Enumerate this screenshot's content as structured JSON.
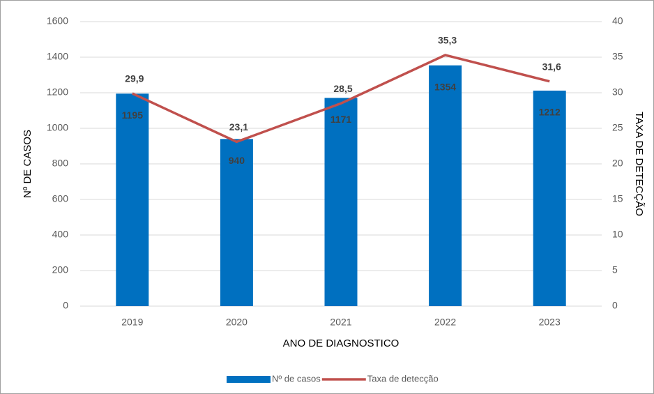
{
  "chart_data": {
    "type": "bar",
    "x_label": "ANO DE DIAGNOSTICO",
    "y_label": "Nº DE CASOS",
    "y2_label": "TAXA DE DETECÇÃO",
    "categories": [
      "2019",
      "2020",
      "2021",
      "2022",
      "2023"
    ],
    "series": [
      {
        "name": "Nº de casos",
        "type": "bar",
        "color": "#0070c0",
        "values": [
          1195,
          940,
          1171,
          1354,
          1212
        ]
      },
      {
        "name": "Taxa de detecção",
        "type": "line",
        "axis": "y2",
        "color": "#c0504d",
        "values": [
          29.9,
          23.1,
          28.5,
          35.3,
          31.6
        ],
        "value_labels": [
          "29,9",
          "23,1",
          "28,5",
          "35,3",
          "31,6"
        ]
      }
    ],
    "ylim": [
      0,
      1600
    ],
    "yticks": [
      0,
      200,
      400,
      600,
      800,
      1000,
      1200,
      1400,
      1600
    ],
    "y2lim": [
      0,
      40
    ],
    "y2ticks": [
      0,
      5,
      10,
      15,
      20,
      25,
      30,
      35,
      40
    ],
    "grid": true,
    "legend": "bottom"
  }
}
